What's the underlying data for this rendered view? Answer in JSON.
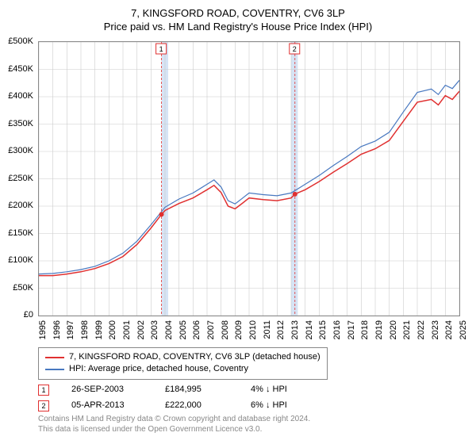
{
  "title": "7, KINGSFORD ROAD, COVENTRY, CV6 3LP",
  "subtitle": "Price paid vs. HM Land Registry's House Price Index (HPI)",
  "chart": {
    "type": "line",
    "background_color": "#ffffff",
    "grid_color": "#cccccc",
    "border_color": "#888888",
    "ylim": [
      0,
      500000
    ],
    "ytick_step": 50000,
    "ytick_labels": [
      "£0",
      "£50K",
      "£100K",
      "£150K",
      "£200K",
      "£250K",
      "£300K",
      "£350K",
      "£400K",
      "£450K",
      "£500K"
    ],
    "xlim": [
      1995,
      2025
    ],
    "xtick_step": 1,
    "xtick_labels": [
      "1995",
      "1996",
      "1997",
      "1998",
      "1999",
      "2000",
      "2001",
      "2002",
      "2003",
      "2004",
      "2005",
      "2006",
      "2007",
      "2008",
      "2009",
      "2010",
      "2011",
      "2012",
      "2013",
      "2014",
      "2015",
      "2016",
      "2017",
      "2018",
      "2019",
      "2020",
      "2021",
      "2022",
      "2023",
      "2024",
      "2025"
    ],
    "highlight_bands": [
      {
        "from": 2003.75,
        "to": 2004.0,
        "color": "#d6e4f5"
      },
      {
        "from": 2013.0,
        "to": 2013.25,
        "color": "#d6e4f5"
      }
    ],
    "markers": [
      {
        "id": "1",
        "x": 2003.75,
        "y": 184995,
        "border_color": "#e03030"
      },
      {
        "id": "2",
        "x": 2013.27,
        "y": 222000,
        "border_color": "#e03030"
      }
    ],
    "marker_labels": [
      {
        "id": "1",
        "x": 2003.75,
        "border_color": "#e03030",
        "vline_color": "#e03030"
      },
      {
        "id": "2",
        "x": 2013.27,
        "border_color": "#e03030",
        "vline_color": "#e03030"
      }
    ],
    "series": [
      {
        "name": "price_paid",
        "label": "7, KINGSFORD ROAD, COVENTRY, CV6 3LP (detached house)",
        "color": "#e03030",
        "line_width": 1.5,
        "points": [
          [
            1995,
            73000
          ],
          [
            1996,
            73000
          ],
          [
            1997,
            76000
          ],
          [
            1998,
            80000
          ],
          [
            1999,
            86000
          ],
          [
            2000,
            95000
          ],
          [
            2001,
            108000
          ],
          [
            2002,
            130000
          ],
          [
            2003,
            160000
          ],
          [
            2003.75,
            184995
          ],
          [
            2004,
            192000
          ],
          [
            2005,
            205000
          ],
          [
            2006,
            215000
          ],
          [
            2007,
            230000
          ],
          [
            2007.5,
            238000
          ],
          [
            2008,
            225000
          ],
          [
            2008.5,
            200000
          ],
          [
            2009,
            195000
          ],
          [
            2009.5,
            205000
          ],
          [
            2010,
            215000
          ],
          [
            2011,
            212000
          ],
          [
            2012,
            210000
          ],
          [
            2013,
            215000
          ],
          [
            2013.27,
            222000
          ],
          [
            2014,
            230000
          ],
          [
            2015,
            245000
          ],
          [
            2016,
            262000
          ],
          [
            2017,
            278000
          ],
          [
            2018,
            295000
          ],
          [
            2019,
            305000
          ],
          [
            2020,
            320000
          ],
          [
            2021,
            355000
          ],
          [
            2022,
            390000
          ],
          [
            2023,
            395000
          ],
          [
            2023.5,
            385000
          ],
          [
            2024,
            402000
          ],
          [
            2024.5,
            395000
          ],
          [
            2025,
            410000
          ]
        ]
      },
      {
        "name": "hpi",
        "label": "HPI: Average price, detached house, Coventry",
        "color": "#4878c0",
        "line_width": 1.2,
        "points": [
          [
            1995,
            76000
          ],
          [
            1996,
            77000
          ],
          [
            1997,
            80000
          ],
          [
            1998,
            84000
          ],
          [
            1999,
            90000
          ],
          [
            2000,
            100000
          ],
          [
            2001,
            114000
          ],
          [
            2002,
            136000
          ],
          [
            2003,
            166000
          ],
          [
            2004,
            198000
          ],
          [
            2005,
            213000
          ],
          [
            2006,
            224000
          ],
          [
            2007,
            240000
          ],
          [
            2007.5,
            248000
          ],
          [
            2008,
            235000
          ],
          [
            2008.5,
            210000
          ],
          [
            2009,
            204000
          ],
          [
            2009.5,
            214000
          ],
          [
            2010,
            224000
          ],
          [
            2011,
            221000
          ],
          [
            2012,
            219000
          ],
          [
            2013,
            224000
          ],
          [
            2014,
            240000
          ],
          [
            2015,
            256000
          ],
          [
            2016,
            274000
          ],
          [
            2017,
            291000
          ],
          [
            2018,
            309000
          ],
          [
            2019,
            319000
          ],
          [
            2020,
            335000
          ],
          [
            2021,
            372000
          ],
          [
            2022,
            408000
          ],
          [
            2023,
            414000
          ],
          [
            2023.5,
            404000
          ],
          [
            2024,
            421000
          ],
          [
            2024.5,
            415000
          ],
          [
            2025,
            430000
          ]
        ]
      }
    ]
  },
  "legend": {
    "items": [
      {
        "color": "#e03030",
        "label": "7, KINGSFORD ROAD, COVENTRY, CV6 3LP (detached house)"
      },
      {
        "color": "#4878c0",
        "label": "HPI: Average price, detached house, Coventry"
      }
    ]
  },
  "sales": [
    {
      "marker": "1",
      "marker_color": "#e03030",
      "date": "26-SEP-2003",
      "price": "£184,995",
      "diff": "4% ↓ HPI"
    },
    {
      "marker": "2",
      "marker_color": "#e03030",
      "date": "05-APR-2013",
      "price": "£222,000",
      "diff": "6% ↓ HPI"
    }
  ],
  "footer": {
    "line1": "Contains HM Land Registry data © Crown copyright and database right 2024.",
    "line2": "This data is licensed under the Open Government Licence v3.0."
  }
}
